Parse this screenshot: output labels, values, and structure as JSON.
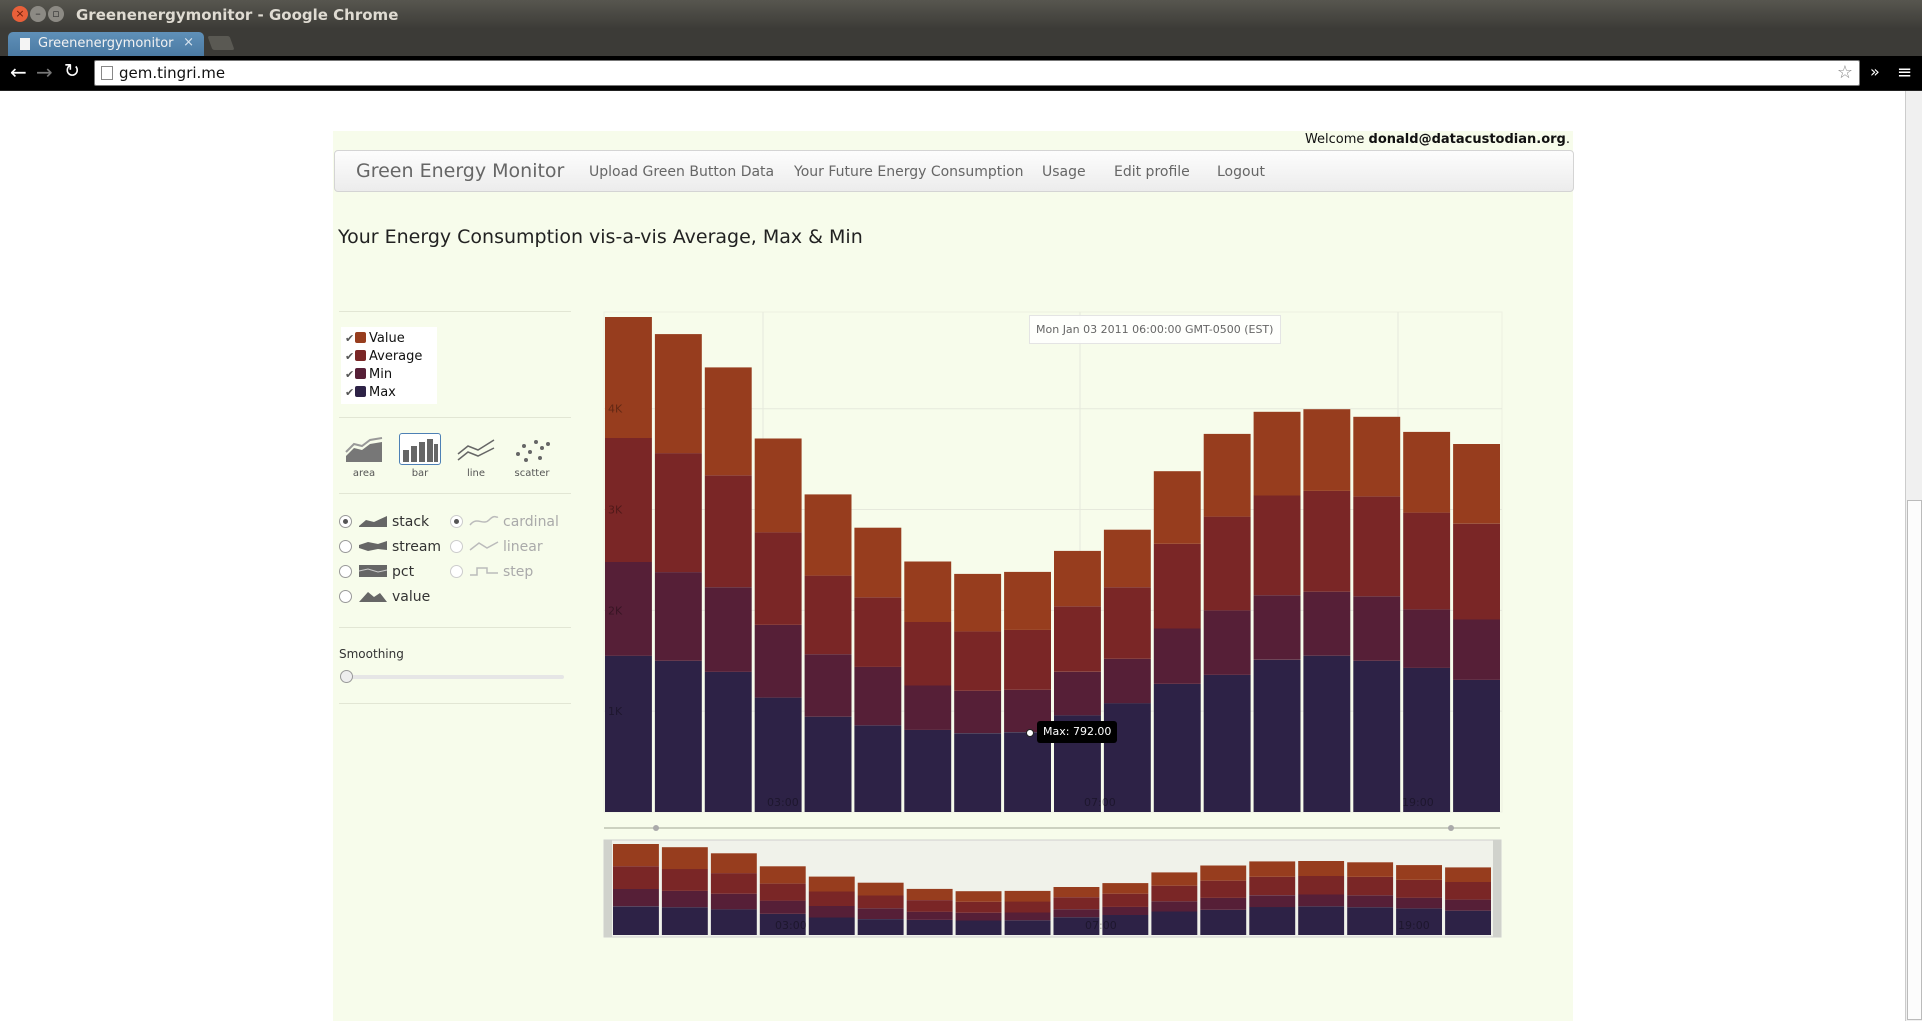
{
  "window": {
    "title": "Greenenergymonitor - Google Chrome"
  },
  "tab": {
    "title": "Greenenergymonitor"
  },
  "address_bar": {
    "url": "gem.tingri.me"
  },
  "header": {
    "welcome_prefix": "Welcome",
    "user_email": "donald@datacustodian.org",
    "welcome_suffix": "."
  },
  "navbar": {
    "brand": "Green Energy Monitor",
    "links": [
      "Upload Green Button Data",
      "Your Future Energy Consumption",
      "Usage",
      "Edit profile",
      "Logout"
    ]
  },
  "page_title": "Your Energy Consumption vis-a-vis Average, Max & Min",
  "legend": {
    "items": [
      {
        "label": "Value",
        "color": "#973d1e",
        "checked": true
      },
      {
        "label": "Average",
        "color": "#7a2626",
        "checked": true
      },
      {
        "label": "Min",
        "color": "#561f37",
        "checked": true
      },
      {
        "label": "Max",
        "color": "#2d2246",
        "checked": true
      }
    ]
  },
  "renderer": {
    "options": [
      "area",
      "bar",
      "line",
      "scatter"
    ],
    "selected": "bar"
  },
  "offset": {
    "options": [
      "stack",
      "stream",
      "pct",
      "value"
    ],
    "selected": "stack",
    "interpolation": [
      "cardinal",
      "linear",
      "step"
    ],
    "interpolation_selected": "cardinal"
  },
  "smoothing": {
    "label": "Smoothing",
    "value": 0
  },
  "hover": {
    "time": "Mon Jan 03 2011 06:00:00 GMT-0500 (EST)",
    "value_label": "Max: 792.00"
  },
  "chart_data": {
    "type": "bar",
    "stacked": true,
    "x": [
      0,
      1,
      2,
      3,
      4,
      5,
      6,
      7,
      8,
      9,
      10,
      11,
      12,
      13,
      14,
      15,
      16,
      17
    ],
    "y_ticks": [
      "1K",
      "2K",
      "3K",
      "4K"
    ],
    "x_ticks": [
      "03:00",
      "07:00",
      "19:00"
    ],
    "series": [
      {
        "name": "Max",
        "color": "#2d2246",
        "values": [
          1550,
          1500,
          1390,
          1135,
          945,
          860,
          815,
          782,
          792,
          960,
          1080,
          1270,
          1360,
          1510,
          1550,
          1500,
          1430,
          1310
        ]
      },
      {
        "name": "Min",
        "color": "#561f37",
        "values": [
          930,
          880,
          840,
          720,
          620,
          580,
          440,
          420,
          420,
          430,
          440,
          550,
          640,
          640,
          635,
          640,
          580,
          600
        ]
      },
      {
        "name": "Average",
        "color": "#7a2626",
        "values": [
          1230,
          1180,
          1110,
          920,
          780,
          690,
          630,
          590,
          595,
          650,
          710,
          840,
          930,
          990,
          1000,
          990,
          960,
          950
        ]
      },
      {
        "name": "Value",
        "color": "#973d1e",
        "values": [
          1200,
          1180,
          1070,
          930,
          805,
          690,
          600,
          570,
          575,
          550,
          570,
          720,
          820,
          830,
          810,
          790,
          800,
          790
        ]
      }
    ],
    "ylim": [
      0,
      5000
    ]
  }
}
